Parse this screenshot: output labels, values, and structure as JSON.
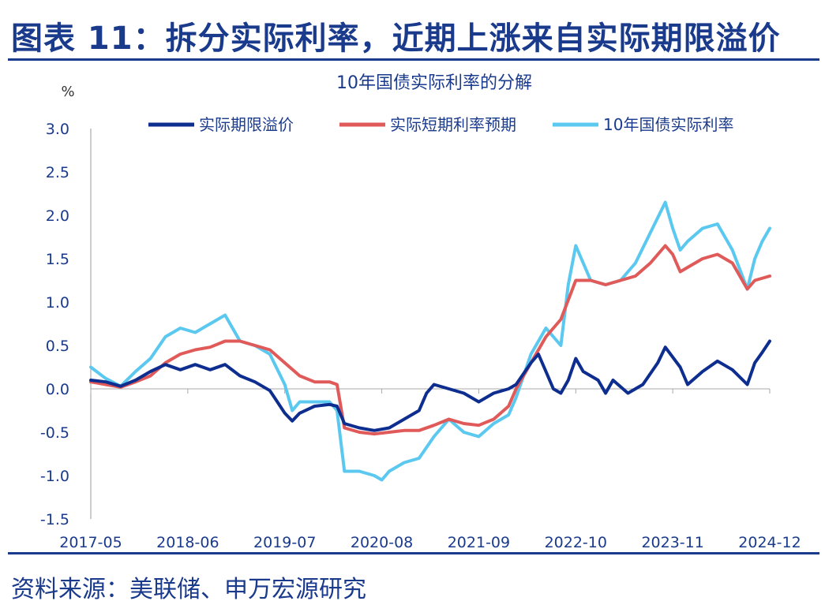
{
  "figure": {
    "title": "图表 11：拆分实际利率，近期上涨来自实际期限溢价",
    "source": "资料来源：美联储、申万宏源研究"
  },
  "chart_data": {
    "type": "line",
    "title": "10年国债实际利率的分解",
    "ylabel": "%",
    "xlabel": "",
    "ylim": [
      -1.5,
      3.0
    ],
    "yticks": [
      3.0,
      2.5,
      2.0,
      1.5,
      1.0,
      0.5,
      0.0,
      -0.5,
      -1.0,
      -1.5
    ],
    "ytick_labels": [
      "3.0",
      "2.5",
      "2.0",
      "1.5",
      "1.0",
      "0.5",
      "0.0",
      "-0.5",
      "-1.0",
      "-1.5"
    ],
    "xticks": [
      "2017-05",
      "2018-06",
      "2019-07",
      "2020-08",
      "2021-09",
      "2022-10",
      "2023-11",
      "2024-12"
    ],
    "xrange": [
      "2017-05",
      "2024-12"
    ],
    "legend_position": "top",
    "grid": false,
    "series": [
      {
        "name": "实际期限溢价",
        "color": "#0d2d8f",
        "points": [
          [
            "2017-05",
            0.1
          ],
          [
            "2017-07",
            0.08
          ],
          [
            "2017-09",
            0.03
          ],
          [
            "2017-11",
            0.1
          ],
          [
            "2018-01",
            0.2
          ],
          [
            "2018-03",
            0.28
          ],
          [
            "2018-05",
            0.22
          ],
          [
            "2018-07",
            0.28
          ],
          [
            "2018-09",
            0.22
          ],
          [
            "2018-11",
            0.28
          ],
          [
            "2019-01",
            0.15
          ],
          [
            "2019-03",
            0.08
          ],
          [
            "2019-05",
            -0.02
          ],
          [
            "2019-06",
            -0.15
          ],
          [
            "2019-07",
            -0.28
          ],
          [
            "2019-08",
            -0.37
          ],
          [
            "2019-09",
            -0.28
          ],
          [
            "2019-11",
            -0.2
          ],
          [
            "2020-01",
            -0.18
          ],
          [
            "2020-02",
            -0.2
          ],
          [
            "2020-03",
            -0.4
          ],
          [
            "2020-05",
            -0.45
          ],
          [
            "2020-07",
            -0.48
          ],
          [
            "2020-09",
            -0.45
          ],
          [
            "2020-11",
            -0.35
          ],
          [
            "2021-01",
            -0.25
          ],
          [
            "2021-02",
            -0.05
          ],
          [
            "2021-03",
            0.05
          ],
          [
            "2021-05",
            0.0
          ],
          [
            "2021-07",
            -0.05
          ],
          [
            "2021-09",
            -0.15
          ],
          [
            "2021-11",
            -0.05
          ],
          [
            "2022-01",
            0.0
          ],
          [
            "2022-02",
            0.05
          ],
          [
            "2022-04",
            0.3
          ],
          [
            "2022-05",
            0.4
          ],
          [
            "2022-06",
            0.2
          ],
          [
            "2022-07",
            0.0
          ],
          [
            "2022-08",
            -0.05
          ],
          [
            "2022-09",
            0.1
          ],
          [
            "2022-10",
            0.35
          ],
          [
            "2022-11",
            0.2
          ],
          [
            "2023-01",
            0.1
          ],
          [
            "2023-02",
            -0.05
          ],
          [
            "2023-03",
            0.1
          ],
          [
            "2023-05",
            -0.05
          ],
          [
            "2023-07",
            0.05
          ],
          [
            "2023-09",
            0.3
          ],
          [
            "2023-10",
            0.48
          ],
          [
            "2023-12",
            0.25
          ],
          [
            "2024-01",
            0.05
          ],
          [
            "2024-03",
            0.2
          ],
          [
            "2024-05",
            0.32
          ],
          [
            "2024-07",
            0.22
          ],
          [
            "2024-09",
            0.05
          ],
          [
            "2024-10",
            0.3
          ],
          [
            "2024-11",
            0.42
          ],
          [
            "2024-12",
            0.55
          ]
        ]
      },
      {
        "name": "实际短期利率预期",
        "color": "#e05a5a",
        "points": [
          [
            "2017-05",
            0.08
          ],
          [
            "2017-07",
            0.05
          ],
          [
            "2017-09",
            0.02
          ],
          [
            "2017-11",
            0.08
          ],
          [
            "2018-01",
            0.15
          ],
          [
            "2018-03",
            0.3
          ],
          [
            "2018-05",
            0.4
          ],
          [
            "2018-07",
            0.45
          ],
          [
            "2018-09",
            0.48
          ],
          [
            "2018-11",
            0.55
          ],
          [
            "2019-01",
            0.55
          ],
          [
            "2019-03",
            0.5
          ],
          [
            "2019-05",
            0.45
          ],
          [
            "2019-07",
            0.3
          ],
          [
            "2019-09",
            0.15
          ],
          [
            "2019-11",
            0.08
          ],
          [
            "2020-01",
            0.08
          ],
          [
            "2020-02",
            0.05
          ],
          [
            "2020-03",
            -0.45
          ],
          [
            "2020-05",
            -0.5
          ],
          [
            "2020-07",
            -0.52
          ],
          [
            "2020-09",
            -0.5
          ],
          [
            "2020-11",
            -0.48
          ],
          [
            "2021-01",
            -0.48
          ],
          [
            "2021-03",
            -0.42
          ],
          [
            "2021-05",
            -0.35
          ],
          [
            "2021-07",
            -0.4
          ],
          [
            "2021-09",
            -0.42
          ],
          [
            "2021-11",
            -0.35
          ],
          [
            "2022-01",
            -0.2
          ],
          [
            "2022-02",
            0.0
          ],
          [
            "2022-04",
            0.3
          ],
          [
            "2022-06",
            0.6
          ],
          [
            "2022-08",
            0.8
          ],
          [
            "2022-10",
            1.25
          ],
          [
            "2022-12",
            1.25
          ],
          [
            "2023-02",
            1.2
          ],
          [
            "2023-04",
            1.25
          ],
          [
            "2023-06",
            1.3
          ],
          [
            "2023-08",
            1.45
          ],
          [
            "2023-10",
            1.65
          ],
          [
            "2023-11",
            1.55
          ],
          [
            "2023-12",
            1.35
          ],
          [
            "2024-01",
            1.4
          ],
          [
            "2024-03",
            1.5
          ],
          [
            "2024-05",
            1.55
          ],
          [
            "2024-07",
            1.45
          ],
          [
            "2024-09",
            1.15
          ],
          [
            "2024-10",
            1.25
          ],
          [
            "2024-12",
            1.3
          ]
        ]
      },
      {
        "name": "10年国债实际利率",
        "color": "#5bc8f0",
        "points": [
          [
            "2017-05",
            0.25
          ],
          [
            "2017-07",
            0.12
          ],
          [
            "2017-09",
            0.03
          ],
          [
            "2017-11",
            0.2
          ],
          [
            "2018-01",
            0.35
          ],
          [
            "2018-03",
            0.6
          ],
          [
            "2018-05",
            0.7
          ],
          [
            "2018-07",
            0.65
          ],
          [
            "2018-09",
            0.75
          ],
          [
            "2018-11",
            0.85
          ],
          [
            "2019-01",
            0.55
          ],
          [
            "2019-03",
            0.5
          ],
          [
            "2019-05",
            0.4
          ],
          [
            "2019-07",
            0.05
          ],
          [
            "2019-08",
            -0.25
          ],
          [
            "2019-09",
            -0.15
          ],
          [
            "2019-11",
            -0.15
          ],
          [
            "2020-01",
            -0.15
          ],
          [
            "2020-02",
            -0.25
          ],
          [
            "2020-03",
            -0.95
          ],
          [
            "2020-05",
            -0.95
          ],
          [
            "2020-07",
            -1.0
          ],
          [
            "2020-08",
            -1.05
          ],
          [
            "2020-09",
            -0.95
          ],
          [
            "2020-11",
            -0.85
          ],
          [
            "2021-01",
            -0.8
          ],
          [
            "2021-03",
            -0.55
          ],
          [
            "2021-05",
            -0.35
          ],
          [
            "2021-07",
            -0.5
          ],
          [
            "2021-09",
            -0.55
          ],
          [
            "2021-11",
            -0.4
          ],
          [
            "2022-01",
            -0.3
          ],
          [
            "2022-02",
            -0.1
          ],
          [
            "2022-04",
            0.4
          ],
          [
            "2022-06",
            0.7
          ],
          [
            "2022-08",
            0.5
          ],
          [
            "2022-09",
            1.2
          ],
          [
            "2022-10",
            1.65
          ],
          [
            "2022-12",
            1.25
          ],
          [
            "2023-02",
            1.2
          ],
          [
            "2023-04",
            1.25
          ],
          [
            "2023-06",
            1.45
          ],
          [
            "2023-08",
            1.8
          ],
          [
            "2023-10",
            2.15
          ],
          [
            "2023-11",
            1.85
          ],
          [
            "2023-12",
            1.6
          ],
          [
            "2024-01",
            1.7
          ],
          [
            "2024-03",
            1.85
          ],
          [
            "2024-05",
            1.9
          ],
          [
            "2024-07",
            1.6
          ],
          [
            "2024-09",
            1.15
          ],
          [
            "2024-10",
            1.5
          ],
          [
            "2024-11",
            1.7
          ],
          [
            "2024-12",
            1.85
          ]
        ]
      }
    ]
  }
}
